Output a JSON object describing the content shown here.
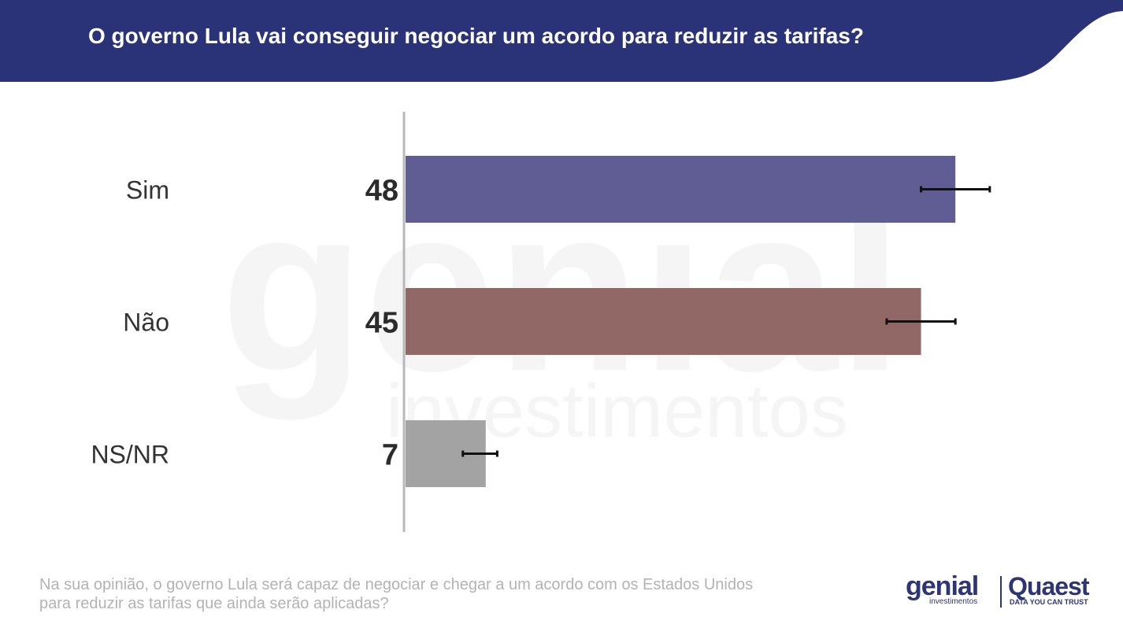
{
  "header": {
    "title": "O governo Lula vai conseguir negociar um acordo para reduzir as tarifas?",
    "background": "#2a3378"
  },
  "chart_data": {
    "type": "bar",
    "orientation": "horizontal",
    "categories": [
      "Sim",
      "Não",
      "NS/NR"
    ],
    "values": [
      48,
      45,
      7
    ],
    "colors": [
      "#605d94",
      "#926866",
      "#a3a3a3"
    ],
    "error_bars": [
      [
        45,
        51
      ],
      [
        42,
        48
      ],
      [
        5,
        8
      ]
    ],
    "xlim": [
      0,
      55
    ],
    "grid": false
  },
  "footnote": {
    "line1": "Na sua opinião, o governo Lula será capaz de negociar e chegar a um acordo com os Estados Unidos",
    "line2": "para reduzir as tarifas que ainda serão aplicadas?"
  },
  "logos": {
    "genial_word": "genial",
    "genial_sub": "investimentos",
    "quaest_word": "Quaest",
    "quaest_sub": "DATA YOU CAN TRUST",
    "brand_color": "#2d3575"
  },
  "watermark": {
    "word": "genial",
    "sub": "investimentos"
  }
}
